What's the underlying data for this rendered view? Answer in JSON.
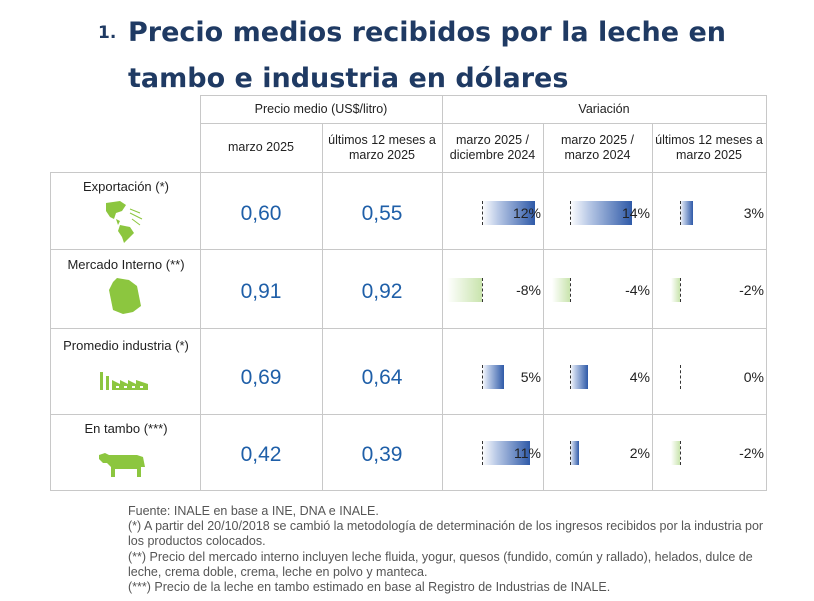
{
  "title": {
    "number": "1.",
    "line1": "Precio medios recibidos por la leche en",
    "line2": "tambo e industria en dólares"
  },
  "headers": {
    "group_price": "Precio medio (US$/litro)",
    "group_variation": "Variación",
    "col1": "marzo 2025",
    "col2": "últimos 12 meses a marzo 2025",
    "col3": "marzo 2025 / diciembre 2024",
    "col4": "marzo 2025 / marzo 2024",
    "col5": "últimos 12 meses a marzo 2025"
  },
  "rows": [
    {
      "label": "Exportación (*)",
      "icon": "americas-map-icon",
      "price_month": "0,60",
      "price_12m": "0,55",
      "var": [
        {
          "text": "12%",
          "value": 12
        },
        {
          "text": "14%",
          "value": 14
        },
        {
          "text": "3%",
          "value": 3
        }
      ]
    },
    {
      "label": "Mercado Interno (**)",
      "icon": "uruguay-map-icon",
      "price_month": "0,91",
      "price_12m": "0,92",
      "var": [
        {
          "text": "-8%",
          "value": -8
        },
        {
          "text": "-4%",
          "value": -4
        },
        {
          "text": "-2%",
          "value": -2
        }
      ]
    },
    {
      "label": "Promedio industria (*)",
      "icon": "factory-icon",
      "price_month": "0,69",
      "price_12m": "0,64",
      "var": [
        {
          "text": "5%",
          "value": 5
        },
        {
          "text": "4%",
          "value": 4
        },
        {
          "text": "0%",
          "value": 0
        }
      ]
    },
    {
      "label": "En tambo (***)",
      "icon": "cow-icon",
      "price_month": "0,42",
      "price_12m": "0,39",
      "var": [
        {
          "text": "11%",
          "value": 11
        },
        {
          "text": "2%",
          "value": 2
        },
        {
          "text": "-2%",
          "value": -2
        }
      ]
    }
  ],
  "notes": [
    "Fuente: INALE en base a INE, DNA e INALE.",
    "(*) A partir del 20/10/2018 se cambió la metodología de determinación de los ingresos recibidos por la industria por los productos colocados.",
    "(**) Precio del mercado interno incluyen leche fluida, yogur, quesos (fundido, común y rallado), helados, dulce de leche, crema doble, crema, leche en polvo y manteca.",
    "(***) Precio de la leche en tambo estimado en base al Registro de Industrias de INALE."
  ],
  "colors": {
    "title": "#1f3a63",
    "value": "#1f5fa8",
    "positive_bar": "#2f5aa8",
    "negative_bar": "#c9e4ad",
    "icon_green": "#8cc63f"
  }
}
